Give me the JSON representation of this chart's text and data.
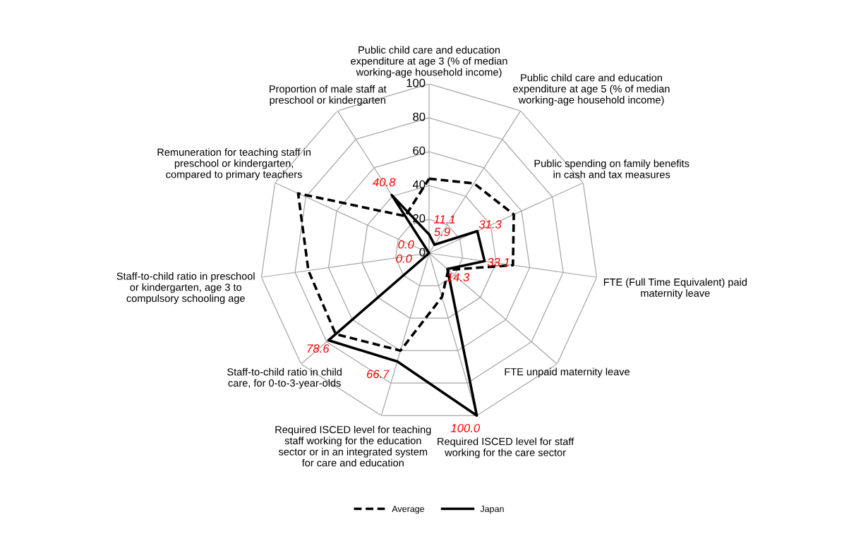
{
  "chart_data": {
    "type": "radar",
    "categories": [
      "Public child care and education expenditure at age 3 (% of median working-age household income)",
      "Public child care and education expenditure at age 5 (% of median working-age household income)",
      "Public spending on family benefits in cash and tax measures",
      "FTE (Full Time Equivalent) paid maternity leave",
      "FTE unpaid maternity leave",
      "Required ISCED level for staff working for the care sector",
      "Required ISCED level for teaching staff working for the education sector or in an integrated system for care and education",
      "Staff-to-child ratio in child care, for 0-to-3-year-olds",
      "Staff-to-child ratio in preschool or kindergarten, age 3 to compulsory schooling age",
      "Remuneration for teaching staff in  preschool or kindergarten, compared to primary teachers",
      "Proportion of male staff at preschool or kindergarten"
    ],
    "series": [
      {
        "name": "Average",
        "color": "#000000",
        "line_style": "dashed",
        "values": [
          44,
          49,
          55,
          50,
          15,
          27,
          60,
          73,
          72,
          85,
          26
        ]
      },
      {
        "name": "Japan",
        "color": "#000000",
        "line_style": "solid",
        "values": [
          11.1,
          5.9,
          31.3,
          33.1,
          14.3,
          100.0,
          66.7,
          78.6,
          0.0,
          0.0,
          40.8
        ],
        "value_labels": [
          "11.1",
          "5.9",
          "31.3",
          "33.1",
          "14.3",
          "100.0",
          "66.7",
          "78.6",
          "0.0",
          "0.0",
          "40.8"
        ]
      }
    ],
    "ylim": [
      0,
      100
    ],
    "yticks": [
      0,
      20,
      40,
      60,
      80,
      100
    ],
    "grid": true,
    "legend": "bottom",
    "marker": "none"
  }
}
